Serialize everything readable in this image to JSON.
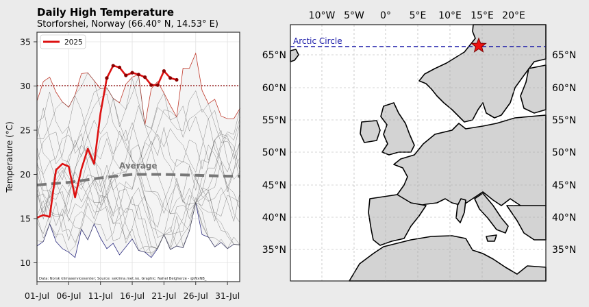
{
  "chart_data": [
    {
      "type": "line",
      "title": "Daily High Temperature",
      "subtitle": "Storforshei, Norway (66.40° N, 14.53° E)",
      "xlabel": "",
      "ylabel": "Temperature (°C)",
      "ylim": [
        7.5,
        36.2
      ],
      "xlim": [
        "01-Jul",
        "02-Aug"
      ],
      "x_ticks": [
        "01-Jul",
        "06-Jul",
        "11-Jul",
        "16-Jul",
        "21-Jul",
        "26-Jul",
        "31-Jul"
      ],
      "y_ticks": [
        10,
        15,
        20,
        25,
        30,
        35
      ],
      "grid": true,
      "legend": {
        "position": "upper left",
        "entries": [
          "2025"
        ]
      },
      "reference_line": {
        "y": 30,
        "style": "dotted",
        "color": "#8b0000"
      },
      "annotations": [
        {
          "text": "Average",
          "x": "16-Jul",
          "y": 20.9
        },
        {
          "text": "Data: Norsk klimaservicesenter; Source: seklima.met.no, Graphic: Nahel Belgherze - @WxNB_",
          "position": "bottom-left"
        }
      ],
      "series": [
        {
          "name": "2025",
          "color": "#dd1111",
          "x": [
            "01-Jul",
            "02-Jul",
            "03-Jul",
            "04-Jul",
            "05-Jul",
            "06-Jul",
            "07-Jul",
            "08-Jul",
            "09-Jul",
            "10-Jul",
            "11-Jul",
            "12-Jul",
            "13-Jul",
            "14-Jul",
            "15-Jul",
            "16-Jul",
            "17-Jul",
            "18-Jul",
            "19-Jul",
            "20-Jul",
            "21-Jul",
            "22-Jul",
            "23-Jul"
          ],
          "values": [
            15.1,
            15.4,
            15.2,
            20.5,
            21.2,
            20.9,
            17.4,
            20.6,
            22.9,
            21.2,
            26.9,
            30.9,
            32.3,
            32.1,
            31.2,
            31.5,
            31.3,
            31.0,
            30.1,
            30.1,
            31.7,
            30.9,
            30.7
          ],
          "marked_above_30": true
        },
        {
          "name": "Average",
          "color": "#777777",
          "style": "dashed",
          "x": [
            "01-Jul",
            "06-Jul",
            "11-Jul",
            "16-Jul",
            "21-Jul",
            "26-Jul",
            "31-Jul",
            "02-Aug"
          ],
          "values": [
            18.8,
            19.1,
            19.6,
            20.0,
            20.0,
            19.9,
            19.8,
            19.8
          ]
        },
        {
          "name": "Record high (max envelope)",
          "color": "#c0392b",
          "x": [
            "01-Jul",
            "02-Jul",
            "03-Jul",
            "04-Jul",
            "05-Jul",
            "06-Jul",
            "07-Jul",
            "08-Jul",
            "09-Jul",
            "10-Jul",
            "11-Jul",
            "12-Jul",
            "13-Jul",
            "14-Jul",
            "15-Jul",
            "16-Jul",
            "17-Jul",
            "18-Jul",
            "19-Jul",
            "20-Jul",
            "21-Jul",
            "22-Jul",
            "23-Jul",
            "24-Jul",
            "25-Jul",
            "26-Jul",
            "27-Jul",
            "28-Jul",
            "29-Jul",
            "30-Jul",
            "31-Jul",
            "01-Aug",
            "02-Aug"
          ],
          "values": [
            28.3,
            30.5,
            31.0,
            29.3,
            28.2,
            27.6,
            29.0,
            31.4,
            31.5,
            30.6,
            29.7,
            29.8,
            28.6,
            28.1,
            30.2,
            31.0,
            31.3,
            25.6,
            29.7,
            30.5,
            29.2,
            27.8,
            26.5,
            32.0,
            32.0,
            33.7,
            29.5,
            28.0,
            28.5,
            26.6,
            26.3,
            26.3,
            27.5
          ]
        },
        {
          "name": "Record low (min envelope)",
          "color": "#2b2b80",
          "x": [
            "01-Jul",
            "02-Jul",
            "03-Jul",
            "04-Jul",
            "05-Jul",
            "06-Jul",
            "07-Jul",
            "08-Jul",
            "09-Jul",
            "10-Jul",
            "11-Jul",
            "12-Jul",
            "13-Jul",
            "14-Jul",
            "15-Jul",
            "16-Jul",
            "17-Jul",
            "18-Jul",
            "19-Jul",
            "20-Jul",
            "21-Jul",
            "22-Jul",
            "23-Jul",
            "24-Jul",
            "25-Jul",
            "26-Jul",
            "27-Jul",
            "28-Jul",
            "29-Jul",
            "30-Jul",
            "31-Jul",
            "01-Aug",
            "02-Aug"
          ],
          "values": [
            11.9,
            12.4,
            14.4,
            12.4,
            11.6,
            11.2,
            10.6,
            13.8,
            12.6,
            14.4,
            12.8,
            11.6,
            12.2,
            10.9,
            11.8,
            12.7,
            11.4,
            11.2,
            10.6,
            11.6,
            13.2,
            11.5,
            11.9,
            11.7,
            13.6,
            16.8,
            13.2,
            12.9,
            11.8,
            12.3,
            11.6,
            12.1,
            12.0
          ]
        }
      ]
    },
    {
      "type": "map",
      "title": "",
      "region": "Europe",
      "lon_range": [
        -15,
        25
      ],
      "lat_range": [
        31,
        69
      ],
      "x_ticks_top": [
        "10°W",
        "5°W",
        "0°",
        "5°E",
        "10°E",
        "15°E",
        "20°E"
      ],
      "y_ticks": [
        "65°N",
        "60°N",
        "55°N",
        "50°N",
        "45°N",
        "40°N",
        "35°N"
      ],
      "annotations": [
        {
          "text": "Arctic Circle",
          "lat": 66.56,
          "style": "dashed",
          "color": "#1a1aa8"
        },
        {
          "marker": "star",
          "color": "#ee1111",
          "lon": 14.53,
          "lat": 66.4
        }
      ],
      "land_color": "#d3d3d3",
      "sea_color": "#ffffff"
    }
  ],
  "header": {
    "title": "Daily High Temperature",
    "subtitle": "Storforshei, Norway (66.40° N, 14.53° E)"
  },
  "axis": {
    "ylabel": "Temperature (°C)",
    "y_ticks": [
      "35",
      "30",
      "25",
      "20",
      "15",
      "10"
    ],
    "x_ticks": [
      "01-Jul",
      "06-Jul",
      "11-Jul",
      "16-Jul",
      "21-Jul",
      "26-Jul",
      "31-Jul"
    ]
  },
  "legend": {
    "label": "2025"
  },
  "labels": {
    "average": "Average",
    "credit": "Data: Norsk klimaservicesenter; Source: seklima.met.no, Graphic: Nahel Belgherze - @WxNB_",
    "arctic_circle": "Arctic Circle"
  },
  "map": {
    "lon_ticks": [
      "10°W",
      "5°W",
      "0°",
      "5°E",
      "10°E",
      "15°E",
      "20°E"
    ],
    "lat_ticks": [
      "65°N",
      "60°N",
      "55°N",
      "50°N",
      "45°N",
      "40°N",
      "35°N"
    ]
  }
}
